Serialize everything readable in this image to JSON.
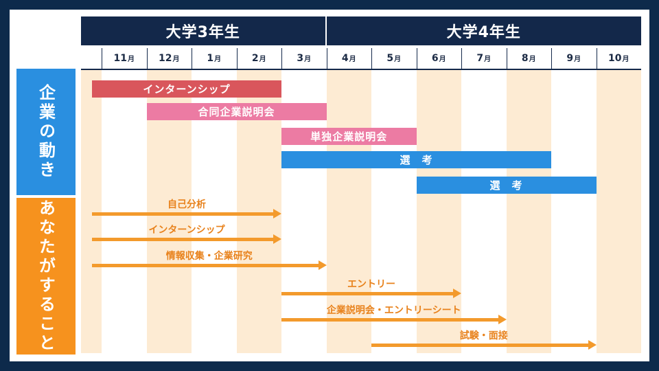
{
  "years": [
    {
      "label": "大学3年生"
    },
    {
      "label": "大学4年生"
    }
  ],
  "months": [
    {
      "num": "11",
      "unit": "月"
    },
    {
      "num": "12",
      "unit": "月"
    },
    {
      "num": "1",
      "unit": "月"
    },
    {
      "num": "2",
      "unit": "月"
    },
    {
      "num": "3",
      "unit": "月"
    },
    {
      "num": "4",
      "unit": "月"
    },
    {
      "num": "5",
      "unit": "月"
    },
    {
      "num": "6",
      "unit": "月"
    },
    {
      "num": "7",
      "unit": "月"
    },
    {
      "num": "8",
      "unit": "月"
    },
    {
      "num": "9",
      "unit": "月"
    },
    {
      "num": "10",
      "unit": "月"
    }
  ],
  "sections": {
    "company": {
      "label": "企業の動き",
      "color": "#2a8fe0"
    },
    "you": {
      "label": "あなたがすること",
      "color": "#f6921e"
    }
  },
  "company_bars": [
    {
      "label": "インターンシップ",
      "start": "11月",
      "end": "3月",
      "color": "#d9565c"
    },
    {
      "label": "合同企業説明会",
      "start": "12月",
      "end": "4月",
      "color": "#ec7ba3"
    },
    {
      "label": "単独企業説明会",
      "start": "3月",
      "end": "6月",
      "color": "#ec7ba3"
    },
    {
      "label": "選　考",
      "start": "3月",
      "end": "9月",
      "color": "#2a8fe0"
    },
    {
      "label": "選　考",
      "start": "6月",
      "end": "10月",
      "color": "#2a8fe0"
    }
  ],
  "your_arrows": [
    {
      "label": "自己分析",
      "start": "11月",
      "end": "3月"
    },
    {
      "label": "インターンシップ",
      "start": "11月",
      "end": "3月"
    },
    {
      "label": "情報収集・企業研究",
      "start": "11月",
      "end": "4月"
    },
    {
      "label": "エントリー",
      "start": "3月",
      "end": "7月"
    },
    {
      "label": "企業説明会・エントリーシート",
      "start": "3月",
      "end": "8月"
    },
    {
      "label": "試験・面接",
      "start": "5月",
      "end": "10月"
    }
  ],
  "colors": {
    "navy": "#13284a",
    "stripe": "#fdebd3",
    "arrow": "#f39a2c",
    "arrow_text": "#e8821c"
  }
}
